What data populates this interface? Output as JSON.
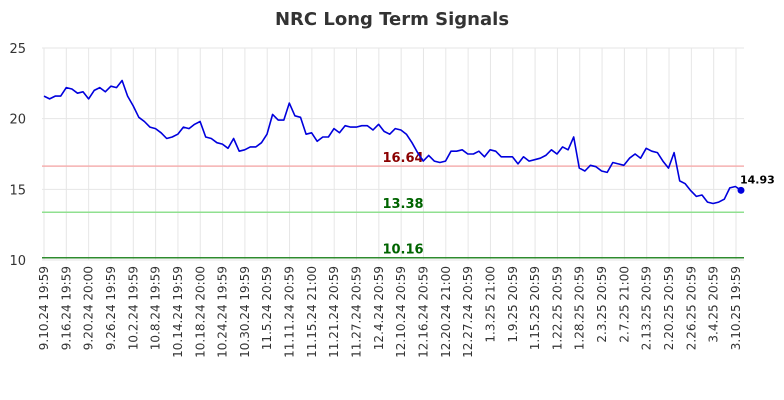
{
  "chart_data": {
    "type": "line",
    "title": "NRC Long Term Signals",
    "ylim": [
      10,
      25
    ],
    "yticks": [
      10,
      15,
      20,
      25
    ],
    "grid": true,
    "x_tick_labels": [
      "9.10.24 19:59",
      "9.16.24 19:59",
      "9.20.24 20:00",
      "9.26.24 19:59",
      "10.2.24 19:59",
      "10.8.24 19:59",
      "10.14.24 19:59",
      "10.18.24 20:00",
      "10.24.24 19:59",
      "10.30.24 19:59",
      "11.5.24 20:59",
      "11.11.24 20:59",
      "11.15.24 21:00",
      "11.21.24 20:59",
      "11.27.24 20:59",
      "12.4.24 20:59",
      "12.10.24 20:59",
      "12.16.24 20:59",
      "12.20.24 21:00",
      "12.27.24 20:59",
      "1.3.25 21:00",
      "1.9.25 20:59",
      "1.15.25 20:59",
      "1.22.25 20:59",
      "1.28.25 20:59",
      "2.3.25 20:59",
      "2.7.25 21:00",
      "2.13.25 20:59",
      "2.20.25 20:59",
      "2.26.25 20:59",
      "3.4.25 20:59",
      "3.10.25 19:59"
    ],
    "series": [
      {
        "color": "#0000dd",
        "values": [
          21.6,
          21.4,
          21.6,
          21.6,
          22.2,
          22.1,
          21.8,
          21.9,
          21.4,
          22.0,
          22.2,
          21.9,
          22.3,
          22.2,
          22.7,
          21.6,
          20.9,
          20.1,
          19.8,
          19.4,
          19.3,
          19.0,
          18.6,
          18.7,
          18.9,
          19.4,
          19.3,
          19.6,
          19.8,
          18.7,
          18.6,
          18.3,
          18.2,
          17.9,
          18.6,
          17.7,
          17.8,
          18.0,
          18.0,
          18.3,
          18.9,
          20.3,
          19.9,
          19.9,
          21.1,
          20.2,
          20.1,
          18.9,
          19.0,
          18.4,
          18.7,
          18.7,
          19.3,
          19.0,
          19.5,
          19.4,
          19.4,
          19.5,
          19.5,
          19.2,
          19.6,
          19.1,
          18.9,
          19.3,
          19.2,
          18.9,
          18.3,
          17.6,
          17.0,
          17.4,
          17.0,
          16.9,
          17.0,
          17.7,
          17.7,
          17.8,
          17.5,
          17.5,
          17.7,
          17.3,
          17.8,
          17.7,
          17.3,
          17.3,
          17.3,
          16.8,
          17.3,
          17.0,
          17.1,
          17.2,
          17.4,
          17.8,
          17.5,
          18.0,
          17.8,
          18.7,
          16.5,
          16.3,
          16.7,
          16.6,
          16.3,
          16.2,
          16.9,
          16.8,
          16.7,
          17.2,
          17.5,
          17.2,
          17.9,
          17.7,
          17.6,
          17.0,
          16.5,
          17.6,
          15.6,
          15.4,
          14.9,
          14.5,
          14.6,
          14.1,
          14.0,
          14.1,
          14.3,
          15.1,
          15.2,
          14.93
        ]
      }
    ],
    "levels": [
      {
        "value": 16.64,
        "label": "16.64",
        "color": "#f5b0b0",
        "text_color": "#8b0000"
      },
      {
        "value": 13.38,
        "label": "13.38",
        "color": "#90e090",
        "text_color": "#006400"
      },
      {
        "value": 10.16,
        "label": "10.16",
        "color": "#2e8b2e",
        "text_color": "#006400"
      }
    ],
    "last_value_label": "14.93"
  }
}
